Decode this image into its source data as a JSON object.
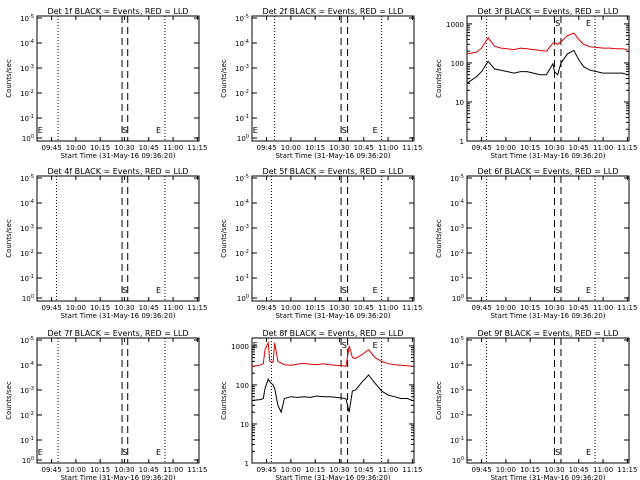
{
  "colors": {
    "events": "#000000",
    "lld": "#dd0000",
    "axis": "#000000",
    "background": "#ffffff"
  },
  "xlabel": "Start Time (31-May-16 09:36:20)",
  "ylabel": "Counts/sec",
  "x_tick_labels": [
    "09:45",
    "10:00",
    "10:15",
    "10:30",
    "10:45",
    "11:00",
    "11:15"
  ],
  "chart_data": [
    {
      "type": "line",
      "title": "Det 1f BLACK = Events, RED = LLD",
      "scale": "log-like",
      "y_tick_labels": [
        "10^-1",
        "10^-2",
        "10^-3",
        "10^-4",
        "10^-5",
        "10^0"
      ],
      "markers": [
        {
          "label": "E",
          "at": "09:36"
        },
        {
          "label": "S",
          "at": "10:30"
        },
        {
          "label": "E",
          "at": "10:55"
        }
      ],
      "series": []
    },
    {
      "type": "line",
      "title": "Det 2f BLACK = Events, RED = LLD",
      "scale": "log-like",
      "y_tick_labels": [
        "10^-1",
        "10^-2",
        "10^-3",
        "10^-4",
        "10^-5",
        "10^0"
      ],
      "markers": [
        {
          "label": "E",
          "at": "09:36"
        },
        {
          "label": "S",
          "at": "10:33"
        },
        {
          "label": "E",
          "at": "10:58"
        }
      ],
      "series": []
    },
    {
      "type": "line",
      "title": "Det 3f BLACK = Events, RED = LLD",
      "scale": "log",
      "y_tick_labels": [
        "1000",
        "100",
        "10",
        "1"
      ],
      "markers": [
        {
          "label": "S",
          "at": "10:30"
        },
        {
          "label": "E",
          "at": "10:55"
        }
      ],
      "series": [
        {
          "name": "LLD",
          "x": [
            0,
            6,
            9,
            13,
            17,
            21,
            25,
            29,
            33,
            37,
            41,
            45,
            49,
            53,
            54,
            56,
            58,
            62,
            66,
            69,
            72,
            76,
            80,
            84,
            88,
            92,
            96,
            99
          ],
          "y": [
            170,
            190,
            240,
            440,
            270,
            240,
            230,
            220,
            240,
            230,
            220,
            210,
            200,
            320,
            330,
            300,
            350,
            500,
            580,
            400,
            300,
            260,
            250,
            240,
            240,
            230,
            230,
            220
          ]
        },
        {
          "name": "Events",
          "x": [
            0,
            6,
            9,
            13,
            17,
            21,
            25,
            29,
            33,
            37,
            41,
            45,
            49,
            53,
            54,
            56,
            58,
            62,
            66,
            69,
            72,
            76,
            80,
            84,
            88,
            92,
            96,
            99
          ],
          "y": [
            30,
            45,
            60,
            110,
            70,
            65,
            60,
            55,
            60,
            60,
            55,
            50,
            50,
            95,
            60,
            50,
            100,
            170,
            210,
            120,
            80,
            65,
            60,
            55,
            55,
            55,
            55,
            50
          ]
        }
      ]
    },
    {
      "type": "line",
      "title": "Det 4f BLACK = Events, RED = LLD",
      "scale": "log-like",
      "y_tick_labels": [
        "10^-1",
        "10^-2",
        "10^-3",
        "10^-4",
        "10^-5",
        "10^0"
      ],
      "markers": [
        {
          "label": "S",
          "at": "10:30"
        },
        {
          "label": "E",
          "at": "10:55"
        }
      ],
      "series": []
    },
    {
      "type": "line",
      "title": "Det 5f BLACK = Events, RED = LLD",
      "scale": "log-like",
      "y_tick_labels": [
        "10^-1",
        "10^-2",
        "10^-3",
        "10^-4",
        "10^-5",
        "10^0"
      ],
      "markers": [
        {
          "label": "S",
          "at": "10:30"
        },
        {
          "label": "E",
          "at": "10:55"
        }
      ],
      "series": []
    },
    {
      "type": "line",
      "title": "Det 6f BLACK = Events, RED = LLD",
      "scale": "log-like",
      "y_tick_labels": [
        "10^-1",
        "10^-2",
        "10^-3",
        "10^-4",
        "10^-5",
        "10^0"
      ],
      "markers": [
        {
          "label": "S",
          "at": "10:30"
        },
        {
          "label": "E",
          "at": "10:55"
        }
      ],
      "series": []
    },
    {
      "type": "line",
      "title": "Det 7f BLACK = Events, RED = LLD",
      "scale": "log-like",
      "y_tick_labels": [
        "10^-1",
        "10^-2",
        "10^-3",
        "10^-4",
        "10^-5",
        "10^0"
      ],
      "markers": [
        {
          "label": "E",
          "at": "09:36"
        },
        {
          "label": "S",
          "at": "10:30"
        },
        {
          "label": "E",
          "at": "10:55"
        }
      ],
      "series": []
    },
    {
      "type": "line",
      "title": "Det 8f BLACK = Events, RED = LLD",
      "scale": "log",
      "y_tick_labels": [
        "1000",
        "100",
        "10",
        "1"
      ],
      "markers": [
        {
          "label": "E",
          "at": "09:36"
        },
        {
          "label": "S",
          "at": "10:33"
        },
        {
          "label": "E",
          "at": "10:58"
        }
      ],
      "series": [
        {
          "name": "LLD",
          "x": [
            0,
            5,
            7,
            8,
            10,
            11,
            13,
            14,
            16,
            20,
            24,
            28,
            32,
            36,
            40,
            44,
            48,
            52,
            56,
            58,
            60,
            62,
            64,
            68,
            72,
            76,
            80,
            84,
            88,
            92,
            96,
            99
          ],
          "y": [
            300,
            320,
            350,
            800,
            1200,
            400,
            380,
            1200,
            400,
            330,
            320,
            340,
            360,
            340,
            330,
            350,
            330,
            320,
            310,
            300,
            1000,
            500,
            480,
            600,
            800,
            500,
            400,
            350,
            330,
            320,
            310,
            300
          ]
        },
        {
          "name": "Events",
          "x": [
            0,
            5,
            7,
            8,
            10,
            11,
            13,
            14,
            16,
            18,
            20,
            24,
            28,
            32,
            36,
            40,
            44,
            48,
            52,
            56,
            58,
            60,
            62,
            64,
            68,
            72,
            76,
            80,
            84,
            88,
            92,
            96,
            99
          ],
          "y": [
            40,
            42,
            45,
            80,
            140,
            120,
            100,
            80,
            30,
            20,
            45,
            50,
            48,
            50,
            48,
            52,
            50,
            50,
            48,
            46,
            44,
            20,
            70,
            75,
            120,
            180,
            110,
            70,
            55,
            50,
            45,
            45,
            40
          ]
        }
      ]
    },
    {
      "type": "line",
      "title": "Det 9f BLACK = Events, RED = LLD",
      "scale": "log-like",
      "y_tick_labels": [
        "10^-1",
        "10^-2",
        "10^-3",
        "10^-4",
        "10^-5",
        "10^0"
      ],
      "markers": [
        {
          "label": "S",
          "at": "10:30"
        },
        {
          "label": "E",
          "at": "10:55"
        }
      ],
      "series": []
    }
  ]
}
